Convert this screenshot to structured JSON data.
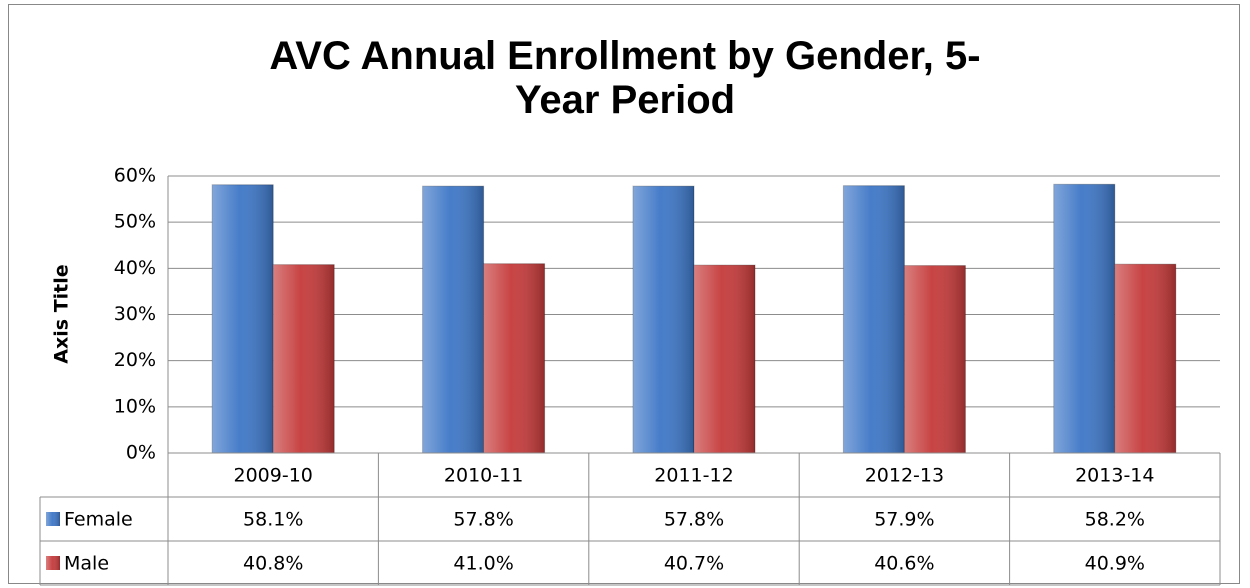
{
  "chart_data": {
    "type": "bar",
    "title": "AVC Annual Enrollment by Gender, 5-Year Period",
    "y_axis_label": "Axis Title",
    "categories": [
      "2009-10",
      "2010-11",
      "2011-12",
      "2012-13",
      "2013-14"
    ],
    "series": [
      {
        "name": "Female",
        "color": "#3d76c6",
        "values": [
          58.1,
          57.8,
          57.8,
          57.9,
          58.2
        ],
        "value_labels": [
          "58.1%",
          "57.8%",
          "57.8%",
          "57.9%",
          "58.2%"
        ]
      },
      {
        "name": "Male",
        "color": "#c53a3a",
        "values": [
          40.8,
          41.0,
          40.7,
          40.6,
          40.9
        ],
        "value_labels": [
          "40.8%",
          "41.0%",
          "40.7%",
          "40.6%",
          "40.9%"
        ]
      }
    ],
    "ylim": [
      0,
      60
    ],
    "yticks": [
      {
        "value": 0,
        "label": "0%"
      },
      {
        "value": 10,
        "label": "10%"
      },
      {
        "value": 20,
        "label": "20%"
      },
      {
        "value": 30,
        "label": "30%"
      },
      {
        "value": 40,
        "label": "40%"
      },
      {
        "value": 50,
        "label": "50%"
      },
      {
        "value": 60,
        "label": "60%"
      }
    ],
    "grid": true
  }
}
